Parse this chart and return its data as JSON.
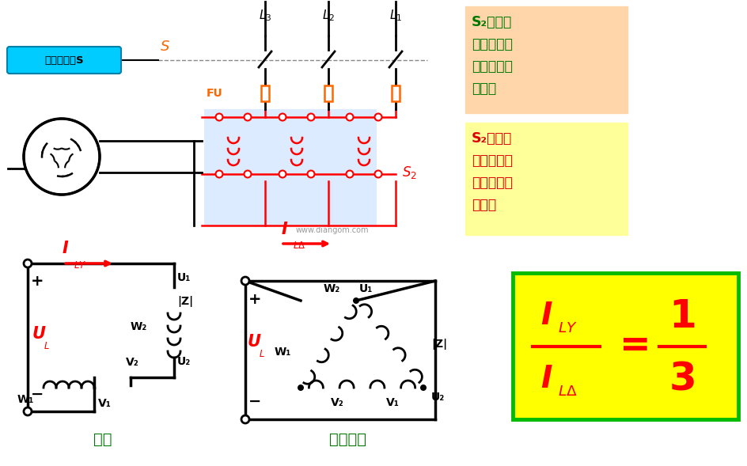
{
  "bg_color": "#FFFFFF",
  "box1_bg": "#FFD5AA",
  "box2_bg": "#FFFF99",
  "formula_bg": "#FFFF00",
  "formula_border": "#00BB00",
  "green_text": "#007700",
  "red_text": "#DD0000",
  "orange_text": "#FF6600",
  "black_text": "#000000",
  "cyan_bg": "#00CCFF",
  "blue_highlight": "#C0DCFF",
  "label_s": "合刀闸开关S",
  "label_qidong": "起动",
  "label_zhengchang": "正常运行",
  "watermark": "www.diangom.com",
  "s2_up_line1": "S₂上合：",
  "s2_up_line2": "切除自耦变",
  "s2_up_line3": "压器，全压",
  "s2_up_line4": "工作。",
  "s2_dn_line1": "S₂下合：",
  "s2_dn_line2": "接入自耦变",
  "s2_dn_line3": "压器，降压",
  "s2_dn_line4": "起动。"
}
